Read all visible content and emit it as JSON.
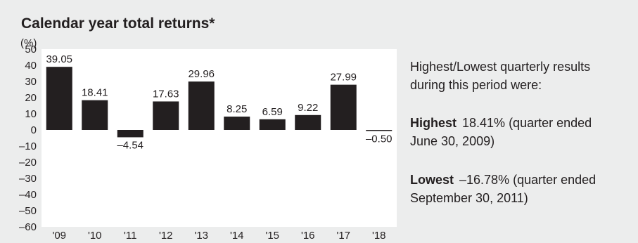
{
  "chart_data": {
    "type": "bar",
    "title": "Calendar year total returns*",
    "ylabel": "(%)",
    "categories": [
      "'09",
      "'10",
      "'11",
      "'12",
      "'13",
      "'14",
      "'15",
      "'16",
      "'17",
      "'18"
    ],
    "values": [
      39.05,
      18.41,
      -4.54,
      17.63,
      29.96,
      8.25,
      6.59,
      9.22,
      27.99,
      -0.5
    ],
    "value_labels": [
      "39.05",
      "18.41",
      "–4.54",
      "17.63",
      "29.96",
      "8.25",
      "6.59",
      "9.22",
      "27.99",
      "–0.50"
    ],
    "ylim": [
      -60,
      50
    ],
    "yticks": [
      50,
      40,
      30,
      20,
      10,
      0,
      -10,
      -20,
      -30,
      -40,
      -50,
      -60
    ],
    "ytick_labels": [
      "50",
      "40",
      "30",
      "20",
      "10",
      "0",
      "–10",
      "–20",
      "–30",
      "–40",
      "–50",
      "–60"
    ],
    "grid": false,
    "bar_color": "#231f20",
    "background_color": "#eceded",
    "chart_background_color": "#ffffff"
  },
  "summary": {
    "intro_line1": "Highest/Lowest quarterly results",
    "intro_line2": "during this period were:",
    "highest_label": "Highest",
    "highest_text": "18.41% (quarter ended",
    "highest_date": "June 30, 2009)",
    "lowest_label": "Lowest",
    "lowest_text": "–16.78% (quarter ended",
    "lowest_date": "September 30, 2011)"
  }
}
